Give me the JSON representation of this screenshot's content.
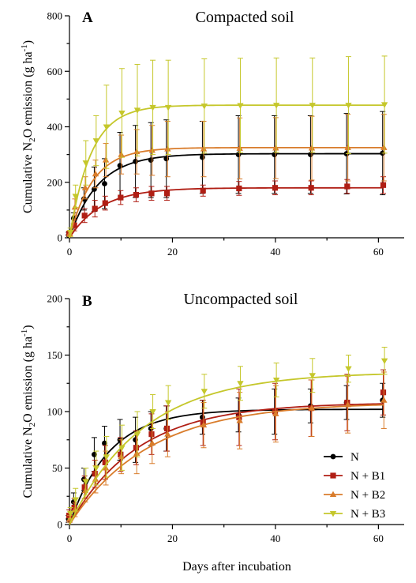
{
  "chart_data": [
    {
      "type": "scatter",
      "panel_label": "A",
      "title": "Compacted soil",
      "xlabel": "",
      "ylabel": "Cumulative N₂O emission (g ha⁻¹)",
      "ylabel_parts": {
        "pre": "Cumulative N",
        "sub": "2",
        "mid": "O emission (g ha",
        "sup": "-1",
        "post": ")"
      },
      "xlim": [
        0,
        65
      ],
      "ylim": [
        0,
        800
      ],
      "xticks": [
        "0",
        "20",
        "40",
        "60"
      ],
      "yticks": [
        "0",
        "200",
        "400",
        "600",
        "800"
      ],
      "x": [
        0,
        1,
        3,
        5,
        7,
        10,
        13,
        16,
        19,
        26,
        33,
        40,
        47,
        54,
        61
      ],
      "series": [
        {
          "name": "N",
          "color": "#000000",
          "marker": "circle",
          "values": [
            10,
            70,
            140,
            175,
            195,
            260,
            275,
            280,
            285,
            290,
            300,
            300,
            300,
            303,
            305
          ],
          "errors": [
            10,
            20,
            40,
            80,
            90,
            120,
            130,
            135,
            140,
            130,
            140,
            140,
            140,
            145,
            150
          ],
          "fit": {
            "a": 303,
            "k": 0.18
          }
        },
        {
          "name": "N + B1",
          "color": "#b01e14",
          "marker": "square",
          "values": [
            15,
            45,
            80,
            105,
            125,
            145,
            155,
            160,
            160,
            170,
            178,
            180,
            180,
            185,
            190
          ],
          "errors": [
            8,
            20,
            25,
            30,
            25,
            25,
            25,
            25,
            25,
            20,
            25,
            25,
            25,
            25,
            30
          ],
          "fit": {
            "a": 180,
            "k": 0.16
          }
        },
        {
          "name": "N + B2",
          "color": "#d97c2b",
          "marker": "triangle-up",
          "values": [
            15,
            110,
            180,
            230,
            280,
            300,
            310,
            315,
            320,
            320,
            322,
            323,
            323,
            325,
            325
          ],
          "errors": [
            10,
            30,
            40,
            50,
            60,
            70,
            80,
            90,
            100,
            100,
            110,
            110,
            115,
            120,
            120
          ],
          "fit": {
            "a": 325,
            "k": 0.22
          }
        },
        {
          "name": "N + B3",
          "color": "#c5c72b",
          "marker": "triangle-down",
          "values": [
            20,
            150,
            270,
            350,
            400,
            450,
            460,
            470,
            470,
            475,
            477,
            478,
            478,
            478,
            480
          ],
          "errors": [
            15,
            40,
            80,
            90,
            150,
            160,
            165,
            170,
            170,
            170,
            170,
            170,
            170,
            175,
            175
          ],
          "fit": {
            "a": 478,
            "k": 0.24
          }
        }
      ]
    },
    {
      "type": "scatter",
      "panel_label": "B",
      "title": "Uncompacted soil",
      "xlabel": "Days after incubation",
      "ylabel": "Cumulative N₂O emission (g ha⁻¹)",
      "ylabel_parts": {
        "pre": "Cumulative N",
        "sub": "2",
        "mid": "O emission (g ha",
        "sup": "-1",
        "post": ")"
      },
      "xlim": [
        0,
        65
      ],
      "ylim": [
        0,
        200
      ],
      "xticks": [
        "0",
        "20",
        "40",
        "60"
      ],
      "yticks": [
        "0",
        "50",
        "100",
        "150",
        "200"
      ],
      "x": [
        0,
        1,
        3,
        5,
        7,
        10,
        13,
        16,
        19,
        26,
        33,
        40,
        47,
        54,
        61
      ],
      "legend": {
        "position": "bottom-right"
      },
      "series": [
        {
          "name": "N",
          "color": "#000000",
          "marker": "circle",
          "values": [
            5,
            20,
            40,
            62,
            72,
            75,
            75,
            85,
            85,
            95,
            97,
            100,
            105,
            108,
            110
          ],
          "errors": [
            3,
            8,
            10,
            15,
            15,
            18,
            20,
            15,
            20,
            15,
            15,
            20,
            15,
            15,
            15
          ],
          "fit": {
            "a": 102,
            "k": 0.13
          }
        },
        {
          "name": "N + B1",
          "color": "#b01e14",
          "marker": "square",
          "values": [
            8,
            15,
            33,
            45,
            55,
            62,
            68,
            80,
            85,
            90,
            95,
            100,
            103,
            108,
            117
          ],
          "errors": [
            5,
            8,
            10,
            12,
            15,
            15,
            15,
            18,
            20,
            20,
            25,
            25,
            25,
            25,
            20
          ],
          "fit": {
            "a": 108,
            "k": 0.075
          }
        },
        {
          "name": "N + B2",
          "color": "#d97c2b",
          "marker": "triangle-up",
          "values": [
            5,
            13,
            30,
            40,
            50,
            60,
            63,
            72,
            80,
            88,
            92,
            98,
            103,
            106,
            110
          ],
          "errors": [
            3,
            6,
            10,
            12,
            15,
            15,
            18,
            18,
            20,
            20,
            25,
            25,
            25,
            25,
            25
          ],
          "fit": {
            "a": 108,
            "k": 0.065
          }
        },
        {
          "name": "N + B3",
          "color": "#c5c72b",
          "marker": "triangle-down",
          "values": [
            10,
            22,
            38,
            50,
            60,
            68,
            80,
            100,
            108,
            118,
            125,
            128,
            132,
            138,
            145
          ],
          "errors": [
            5,
            10,
            12,
            15,
            18,
            20,
            20,
            15,
            15,
            15,
            15,
            15,
            15,
            12,
            12
          ],
          "fit": {
            "a": 135,
            "k": 0.07
          }
        }
      ]
    }
  ]
}
